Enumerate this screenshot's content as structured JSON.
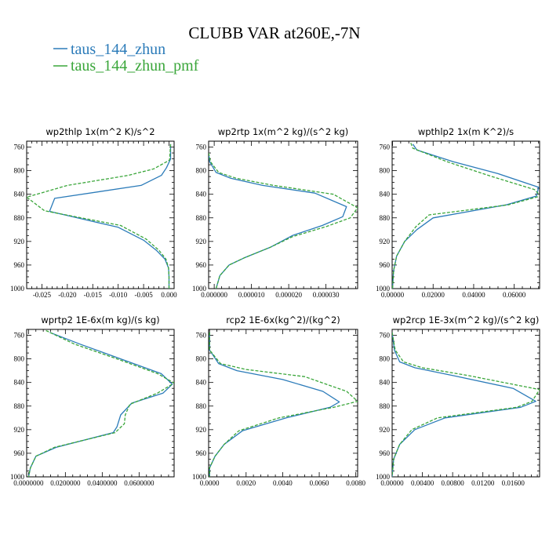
{
  "figure": {
    "title": "CLUBB VAR at260E,-7N",
    "legend": [
      {
        "label": "taus_144_zhun",
        "color": "#2b7bb9"
      },
      {
        "label": "taus_144_zhun_pmf",
        "color": "#3aa63a"
      }
    ]
  },
  "chart_data": [
    {
      "type": "line",
      "title": "wp2thlp   1x(m^2 K)/s^2",
      "xlim": [
        -0.028,
        0.001
      ],
      "ylim": [
        1000,
        750
      ],
      "xticks": [
        -0.025,
        -0.02,
        -0.015,
        -0.01,
        -0.005,
        0.0
      ],
      "xtick_labels": [
        "-0.025",
        "-0.020",
        "-0.015",
        "-0.010",
        "-0.005",
        "0.000"
      ],
      "yticks": [
        760,
        800,
        840,
        880,
        920,
        960,
        1000
      ],
      "ytick_labels": [
        "760",
        "800",
        "840",
        "880",
        "920",
        "960",
        "1000"
      ],
      "series": [
        {
          "name": "taus_144_zhun",
          "color": "#2b7bb9",
          "dash": "",
          "x": [
            0.0003,
            0.0003,
            -0.0005,
            -0.0015,
            -0.0055,
            -0.0225,
            -0.0235,
            -0.01,
            -0.005,
            -0.0025,
            -0.0008,
            -0.0001,
            0.0,
            0.0
          ],
          "y": [
            755,
            780,
            795,
            808,
            825,
            847,
            869,
            896,
            918,
            935,
            950,
            965,
            980,
            1000
          ]
        },
        {
          "name": "taus_144_zhun_pmf",
          "color": "#3aa63a",
          "dash": "4,2",
          "x": [
            0.0003,
            0.0001,
            -0.003,
            -0.008,
            -0.02,
            -0.028,
            -0.0245,
            -0.0095,
            -0.0045,
            -0.002,
            -0.0006,
            -0.0001,
            0.0,
            0.0
          ],
          "y": [
            755,
            782,
            797,
            808,
            825,
            845,
            868,
            893,
            916,
            935,
            950,
            965,
            980,
            1000
          ]
        }
      ]
    },
    {
      "type": "line",
      "title": "wp2rtp   1x(m^2 kg)/(s^2 kg)",
      "xlim": [
        -1.5e-06,
        3.85e-05
      ],
      "ylim": [
        1000,
        750
      ],
      "xticks": [
        0.0,
        1e-05,
        2e-05,
        3e-05
      ],
      "xtick_labels": [
        "0.000000",
        "0.000010",
        "0.000020",
        "0.000030"
      ],
      "yticks": [
        760,
        800,
        840,
        880,
        920,
        960,
        1000
      ],
      "ytick_labels": [
        "760",
        "800",
        "840",
        "880",
        "920",
        "960",
        "1000"
      ],
      "series": [
        {
          "name": "taus_144_zhun",
          "color": "#2b7bb9",
          "dash": "",
          "x": [
            -1.5e-06,
            -1.2e-06,
            5e-07,
            4.5e-06,
            1.3e-05,
            2.7e-05,
            3.55e-05,
            3.45e-05,
            2.9e-05,
            2.1e-05,
            1.5e-05,
            8e-06,
            4e-06,
            1.5e-06,
            5e-07
          ],
          "y": [
            770,
            785,
            803,
            813,
            825,
            838,
            861,
            878,
            893,
            910,
            930,
            948,
            960,
            978,
            1000
          ]
        },
        {
          "name": "taus_144_zhun_pmf",
          "color": "#3aa63a",
          "dash": "4,2",
          "x": [
            -1.5e-06,
            -1e-06,
            1.2e-06,
            6e-06,
            1.6e-05,
            3.2e-05,
            3.85e-05,
            3.65e-05,
            3e-05,
            2.1e-05,
            1.5e-05,
            8e-06,
            4e-06,
            1.5e-06,
            5e-07
          ],
          "y": [
            770,
            785,
            803,
            813,
            825,
            840,
            863,
            880,
            895,
            912,
            930,
            948,
            960,
            978,
            1000
          ]
        }
      ]
    },
    {
      "type": "line",
      "title": "wpthlp2   1x(m K^2)/s",
      "xlim": [
        -0.0002,
        0.0725
      ],
      "ylim": [
        1000,
        750
      ],
      "xticks": [
        0.0,
        0.02,
        0.04,
        0.06
      ],
      "xtick_labels": [
        "0.00000",
        "0.02000",
        "0.04000",
        "0.06000"
      ],
      "yticks": [
        760,
        800,
        840,
        880,
        920,
        960,
        1000
      ],
      "ytick_labels": [
        "760",
        "800",
        "840",
        "880",
        "920",
        "960",
        "1000"
      ],
      "series": [
        {
          "name": "taus_144_zhun",
          "color": "#2b7bb9",
          "dash": "",
          "x": [
            0.01,
            0.012,
            0.03,
            0.052,
            0.072,
            0.071,
            0.056,
            0.02,
            0.012,
            0.006,
            0.002,
            0.0005,
            0.0
          ],
          "y": [
            755,
            765,
            785,
            805,
            828,
            843,
            858,
            880,
            900,
            920,
            945,
            970,
            1000
          ]
        },
        {
          "name": "taus_144_zhun_pmf",
          "color": "#3aa63a",
          "dash": "4,2",
          "x": [
            0.009,
            0.01,
            0.027,
            0.049,
            0.07,
            0.073,
            0.057,
            0.018,
            0.0115,
            0.006,
            0.002,
            0.0005,
            0.0
          ],
          "y": [
            753,
            762,
            785,
            810,
            832,
            843,
            858,
            875,
            895,
            920,
            945,
            970,
            1000
          ]
        }
      ]
    },
    {
      "type": "line",
      "title": "wprtp2   1E-6x(m kg)/(s kg)",
      "xlim": [
        -0.001,
        0.079
      ],
      "ylim": [
        1000,
        750
      ],
      "xticks": [
        0.0,
        0.02,
        0.04,
        0.06
      ],
      "xtick_labels": [
        "0.0000000",
        "0.0200000",
        "0.0400000",
        "0.0600000"
      ],
      "yticks": [
        760,
        800,
        840,
        880,
        920,
        960,
        1000
      ],
      "ytick_labels": [
        "760",
        "800",
        "840",
        "880",
        "920",
        "960",
        "1000"
      ],
      "series": [
        {
          "name": "taus_144_zhun",
          "color": "#2b7bb9",
          "dash": "",
          "x": [
            0.0115,
            0.028,
            0.05,
            0.072,
            0.078,
            0.073,
            0.056,
            0.05,
            0.048,
            0.046,
            0.015,
            0.004,
            0.001,
            0.0
          ],
          "y": [
            755,
            775,
            800,
            825,
            843,
            858,
            875,
            895,
            915,
            925,
            950,
            965,
            985,
            1000
          ]
        },
        {
          "name": "taus_144_zhun_pmf",
          "color": "#3aa63a",
          "dash": "4,2",
          "x": [
            0.0095,
            0.025,
            0.048,
            0.07,
            0.079,
            0.07,
            0.055,
            0.0525,
            0.052,
            0.047,
            0.014,
            0.004,
            0.001,
            0.0
          ],
          "y": [
            752,
            775,
            800,
            825,
            841,
            858,
            877,
            895,
            910,
            925,
            950,
            965,
            985,
            1000
          ]
        }
      ]
    },
    {
      "type": "line",
      "title": "rcp2   1E-6x(kg^2)/(kg^2)",
      "xlim": [
        -5e-05,
        0.0081
      ],
      "ylim": [
        1000,
        750
      ],
      "xticks": [
        0.0,
        0.002,
        0.004,
        0.006,
        0.008
      ],
      "xtick_labels": [
        "0.0000",
        "0.0020",
        "0.0040",
        "0.0060",
        "0.0080"
      ],
      "yticks": [
        760,
        800,
        840,
        880,
        920,
        960,
        1000
      ],
      "ytick_labels": [
        "760",
        "800",
        "840",
        "880",
        "920",
        "960",
        "1000"
      ],
      "series": [
        {
          "name": "taus_144_zhun",
          "color": "#2b7bb9",
          "dash": "",
          "x": [
            0.0,
            0.0,
            0.0005,
            0.0015,
            0.004,
            0.0062,
            0.0071,
            0.0066,
            0.0042,
            0.0018,
            0.0008,
            0.0003,
            0.0,
            0.0
          ],
          "y": [
            755,
            785,
            808,
            820,
            835,
            855,
            873,
            882,
            900,
            922,
            945,
            965,
            985,
            1000
          ]
        },
        {
          "name": "taus_144_zhun_pmf",
          "color": "#3aa63a",
          "dash": "4,2",
          "x": [
            0.0,
            0.0,
            0.0006,
            0.002,
            0.0052,
            0.0075,
            0.0081,
            0.0068,
            0.0038,
            0.0016,
            0.0008,
            0.0003,
            0.0,
            0.0
          ],
          "y": [
            755,
            785,
            808,
            818,
            830,
            855,
            872,
            882,
            900,
            922,
            945,
            965,
            985,
            1000
          ]
        }
      ]
    },
    {
      "type": "line",
      "title": "wp2rcp   1E-3x(m^2 kg)/(s^2 kg)",
      "xlim": [
        0.0,
        0.0195
      ],
      "ylim": [
        1000,
        750
      ],
      "xticks": [
        0.0,
        0.004,
        0.008,
        0.012,
        0.016
      ],
      "xtick_labels": [
        "0.00000",
        "0.00400",
        "0.00800",
        "0.01200",
        "0.01600"
      ],
      "yticks": [
        760,
        800,
        840,
        880,
        920,
        960,
        1000
      ],
      "ytick_labels": [
        "760",
        "800",
        "840",
        "880",
        "920",
        "960",
        "1000"
      ],
      "series": [
        {
          "name": "taus_144_zhun",
          "color": "#2b7bb9",
          "dash": "",
          "x": [
            0.0,
            0.0003,
            0.001,
            0.003,
            0.008,
            0.016,
            0.019,
            0.017,
            0.007,
            0.003,
            0.001,
            0.0002,
            0.0
          ],
          "y": [
            755,
            785,
            805,
            815,
            828,
            850,
            872,
            882,
            900,
            920,
            945,
            970,
            1000
          ]
        },
        {
          "name": "taus_144_zhun_pmf",
          "color": "#3aa63a",
          "dash": "4,2",
          "x": [
            0.0,
            0.0004,
            0.0015,
            0.004,
            0.01,
            0.0195,
            0.0185,
            0.0165,
            0.006,
            0.0026,
            0.001,
            0.0002,
            0.0
          ],
          "y": [
            755,
            785,
            805,
            815,
            828,
            852,
            872,
            882,
            900,
            920,
            945,
            970,
            1000
          ]
        }
      ]
    }
  ]
}
